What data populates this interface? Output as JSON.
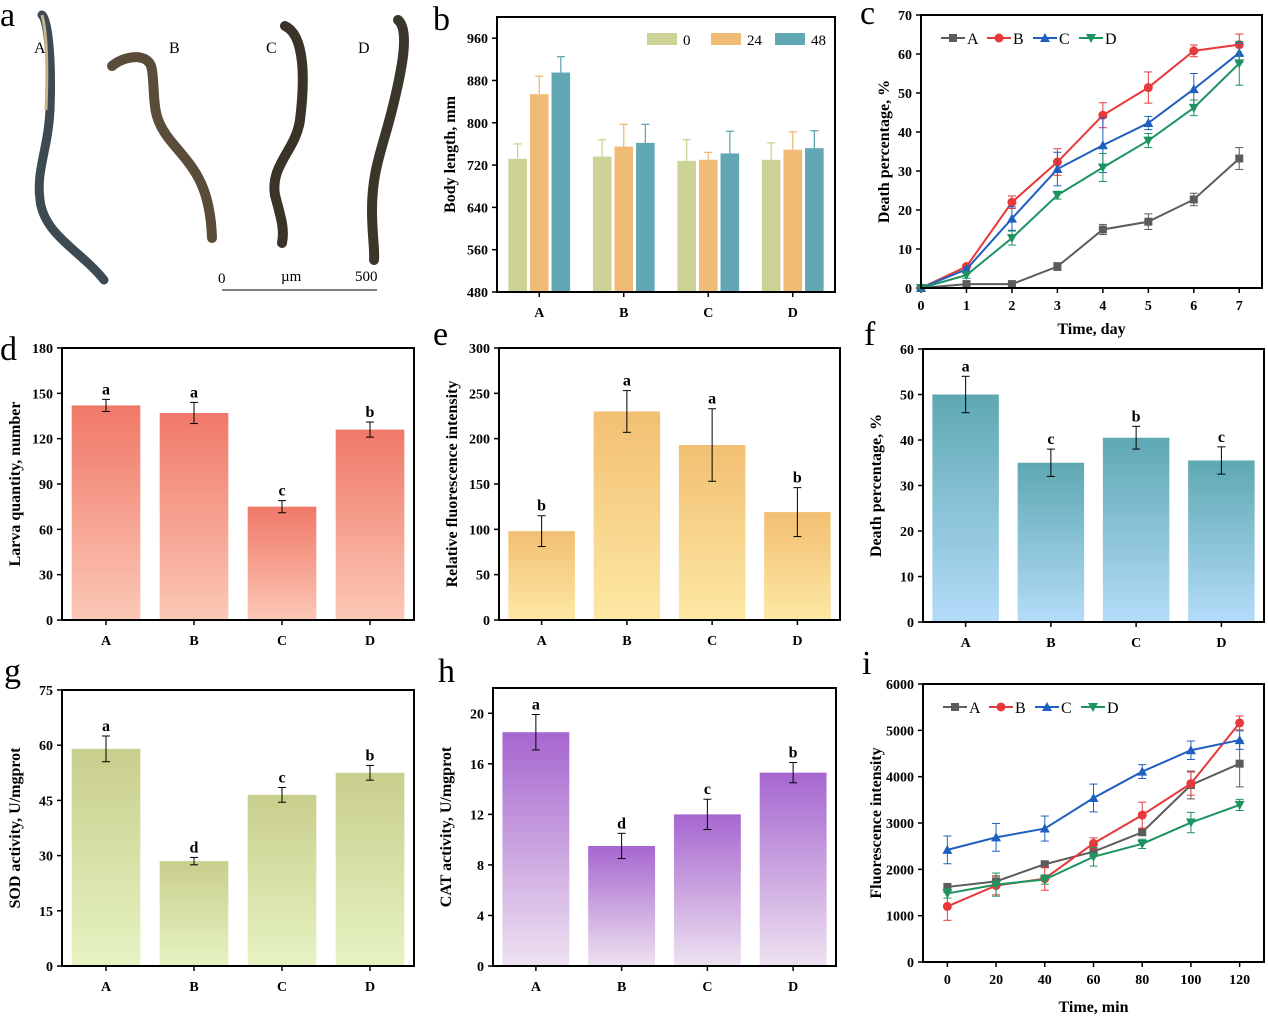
{
  "panel_a": {
    "label": "a",
    "worm_labels": [
      "A",
      "B",
      "C",
      "D"
    ],
    "scale_bar": {
      "start": "0",
      "unit": "µm",
      "end": "500"
    }
  },
  "chart_data": [
    {
      "id": "b",
      "panel_label": "b",
      "type": "bar",
      "categories": [
        "A",
        "B",
        "C",
        "D"
      ],
      "series": [
        {
          "name": "0",
          "color": "#cdd396",
          "values": [
            732,
            736,
            728,
            730
          ],
          "errors": [
            28,
            32,
            40,
            32
          ]
        },
        {
          "name": "24",
          "color": "#f0bb74",
          "values": [
            854,
            755,
            730,
            749
          ],
          "errors": [
            34,
            42,
            14,
            34
          ]
        },
        {
          "name": "48",
          "color": "#62a8b4",
          "values": [
            895,
            762,
            742,
            752
          ],
          "errors": [
            30,
            35,
            42,
            33
          ]
        }
      ],
      "ylabel": "Body length,  mm",
      "xlabel": "",
      "ylim": [
        480,
        1000
      ],
      "yticks": [
        480,
        560,
        640,
        720,
        800,
        880,
        960
      ],
      "legend": "top-right"
    },
    {
      "id": "c",
      "panel_label": "c",
      "type": "line",
      "x": [
        0,
        1,
        2,
        3,
        4,
        5,
        6,
        7
      ],
      "series": [
        {
          "name": "A",
          "color": "#5c5c5c",
          "marker": "square",
          "values": [
            0,
            1,
            1,
            5.5,
            15,
            17,
            22.7,
            33.2
          ],
          "errors": [
            0,
            0.5,
            0.5,
            1,
            1.3,
            2,
            1.6,
            2.8
          ]
        },
        {
          "name": "B",
          "color": "#e8393a",
          "marker": "circle",
          "values": [
            0,
            5.5,
            22,
            32.3,
            44.3,
            51.4,
            60.8,
            62.4
          ],
          "errors": [
            0,
            0.5,
            1.6,
            3.4,
            3.2,
            4,
            1.5,
            2.7
          ]
        },
        {
          "name": "C",
          "color": "#1f5fbf",
          "marker": "triangle-up",
          "values": [
            0,
            4.8,
            17.8,
            30.5,
            36.6,
            42.3,
            51,
            60.3
          ],
          "errors": [
            0,
            0.5,
            3,
            4.3,
            7,
            1.7,
            4,
            2.5
          ]
        },
        {
          "name": "D",
          "color": "#1d9460",
          "marker": "triangle-down",
          "values": [
            0,
            3.3,
            12.8,
            23.8,
            30.9,
            37.8,
            46.2,
            57.6
          ],
          "errors": [
            0,
            0.8,
            1.8,
            1,
            3.6,
            1.8,
            2,
            5.6
          ]
        }
      ],
      "xlabel": "Time,   day",
      "ylabel": "Death percentage, %",
      "xlim": [
        0,
        7.5
      ],
      "ylim": [
        0,
        70
      ],
      "yticks": [
        0,
        10,
        20,
        30,
        40,
        50,
        60,
        70
      ],
      "xticks": [
        0,
        1,
        2,
        3,
        4,
        5,
        6,
        7
      ],
      "legend": "top-left"
    },
    {
      "id": "d",
      "panel_label": "d",
      "type": "bar",
      "categories": [
        "A",
        "B",
        "C",
        "D"
      ],
      "values": [
        142,
        137,
        75,
        126
      ],
      "errors": [
        4,
        7,
        4,
        5
      ],
      "letters": [
        "a",
        "a",
        "c",
        "b"
      ],
      "colors": [
        "#f07868",
        "#fcc8b6"
      ],
      "ylabel": "Larva quantity, number",
      "xlabel": "",
      "ylim": [
        0,
        180
      ],
      "yticks": [
        0,
        30,
        60,
        90,
        120,
        150,
        180
      ]
    },
    {
      "id": "e",
      "panel_label": "e",
      "type": "bar",
      "categories": [
        "A",
        "B",
        "C",
        "D"
      ],
      "values": [
        98,
        230,
        193,
        119
      ],
      "errors": [
        17,
        23,
        40,
        27
      ],
      "letters": [
        "b",
        "a",
        "a",
        "b"
      ],
      "colors": [
        "#f2bf72",
        "#fde8a4"
      ],
      "ylabel": "Relative fluorescence intensity",
      "xlabel": "",
      "ylim": [
        0,
        300
      ],
      "yticks": [
        0,
        50,
        100,
        150,
        200,
        250,
        300
      ]
    },
    {
      "id": "f",
      "panel_label": "f",
      "type": "bar",
      "categories": [
        "A",
        "B",
        "C",
        "D"
      ],
      "values": [
        50,
        35,
        40.5,
        35.5
      ],
      "errors": [
        4,
        3,
        2.5,
        3
      ],
      "letters": [
        "a",
        "c",
        "b",
        "c"
      ],
      "colors": [
        "#5ea8b2",
        "#b4dcfa"
      ],
      "ylabel": "Death percentage, %",
      "xlabel": "",
      "ylim": [
        0,
        60
      ],
      "yticks": [
        0,
        10,
        20,
        30,
        40,
        50,
        60
      ]
    },
    {
      "id": "g",
      "panel_label": "g",
      "type": "bar",
      "categories": [
        "A",
        "B",
        "C",
        "D"
      ],
      "values": [
        59,
        28.5,
        46.5,
        52.5
      ],
      "errors": [
        3.5,
        1,
        2,
        2
      ],
      "letters": [
        "a",
        "d",
        "c",
        "b"
      ],
      "colors": [
        "#c8ce8c",
        "#e6f3c2"
      ],
      "ylabel": "SOD activity, U/mgprot",
      "xlabel": "",
      "ylim": [
        0,
        75
      ],
      "yticks": [
        0,
        15,
        30,
        45,
        60,
        75
      ]
    },
    {
      "id": "h",
      "panel_label": "h",
      "type": "bar",
      "categories": [
        "A",
        "B",
        "C",
        "D"
      ],
      "values": [
        18.5,
        9.5,
        12,
        15.3
      ],
      "errors": [
        1.4,
        1,
        1.2,
        0.8
      ],
      "letters": [
        "a",
        "d",
        "c",
        "b"
      ],
      "colors": [
        "#a666d0",
        "#eee2f0"
      ],
      "ylabel": "CAT activity, U/mgprot",
      "xlabel": "",
      "ylim": [
        0,
        22
      ],
      "yticks": [
        0,
        4,
        8,
        12,
        16,
        20
      ]
    },
    {
      "id": "i",
      "panel_label": "i",
      "type": "line",
      "x": [
        0,
        20,
        40,
        60,
        80,
        100,
        120
      ],
      "series": [
        {
          "name": "A",
          "color": "#5c5c5c",
          "marker": "square",
          "values": [
            1620,
            1740,
            2110,
            2380,
            2800,
            3820,
            4280
          ],
          "errors": [
            60,
            120,
            60,
            100,
            60,
            300,
            500
          ]
        },
        {
          "name": "B",
          "color": "#e8393a",
          "marker": "circle",
          "values": [
            1200,
            1650,
            1800,
            2560,
            3170,
            3850,
            5160
          ],
          "errors": [
            300,
            200,
            250,
            120,
            280,
            250,
            150
          ]
        },
        {
          "name": "C",
          "color": "#1f5fbf",
          "marker": "triangle-up",
          "values": [
            2420,
            2690,
            2880,
            3540,
            4110,
            4570,
            4790
          ],
          "errors": [
            300,
            300,
            270,
            300,
            150,
            200,
            200
          ]
        },
        {
          "name": "D",
          "color": "#1d9460",
          "marker": "triangle-down",
          "values": [
            1480,
            1670,
            1780,
            2270,
            2550,
            3010,
            3390
          ],
          "errors": [
            100,
            250,
            100,
            200,
            100,
            220,
            120
          ]
        }
      ],
      "xlabel": "Time, min",
      "ylabel": "Fluorescence intensity",
      "xlim": [
        -10,
        130
      ],
      "ylim": [
        0,
        6000
      ],
      "yticks": [
        0,
        1000,
        2000,
        3000,
        4000,
        5000,
        6000
      ],
      "xticks": [
        0,
        20,
        40,
        60,
        80,
        100,
        120
      ],
      "legend": "top-left"
    }
  ]
}
